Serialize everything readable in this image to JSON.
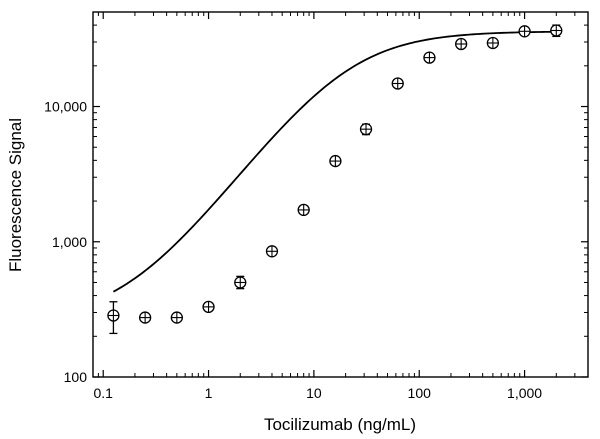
{
  "chart_data": {
    "type": "scatter",
    "title": "",
    "xlabel": "Tocilizumab (ng/mL)",
    "ylabel": "Fluorescence Signal",
    "x_scale": "log",
    "y_scale": "log",
    "xlim": [
      0.08,
      4000
    ],
    "ylim": [
      100,
      50000
    ],
    "grid": false,
    "x_ticks": [
      {
        "value": 0.1,
        "label": "0.1"
      },
      {
        "value": 1,
        "label": "1"
      },
      {
        "value": 10,
        "label": "10"
      },
      {
        "value": 100,
        "label": "100"
      },
      {
        "value": 1000,
        "label": "1,000"
      }
    ],
    "y_ticks": [
      {
        "value": 100,
        "label": "100"
      },
      {
        "value": 1000,
        "label": "1,000"
      },
      {
        "value": 10000,
        "label": "10,000"
      }
    ],
    "series": [
      {
        "type": "scatter",
        "marker": "open-circle",
        "points": [
          {
            "x": 0.125,
            "y": 285,
            "err_lo": 210,
            "err_hi": 360
          },
          {
            "x": 0.25,
            "y": 275,
            "err_lo": 262,
            "err_hi": 288
          },
          {
            "x": 0.5,
            "y": 275,
            "err_lo": 262,
            "err_hi": 288
          },
          {
            "x": 1,
            "y": 330,
            "err_lo": 315,
            "err_hi": 345
          },
          {
            "x": 2,
            "y": 500,
            "err_lo": 450,
            "err_hi": 555
          },
          {
            "x": 4,
            "y": 850,
            "err_lo": 820,
            "err_hi": 880
          },
          {
            "x": 8,
            "y": 1720,
            "err_lo": 1640,
            "err_hi": 1800
          },
          {
            "x": 16,
            "y": 3950,
            "err_lo": 3750,
            "err_hi": 4150
          },
          {
            "x": 31.25,
            "y": 6800,
            "err_lo": 6200,
            "err_hi": 7400
          },
          {
            "x": 62.5,
            "y": 14800,
            "err_lo": 14000,
            "err_hi": 15600
          },
          {
            "x": 125,
            "y": 23000,
            "err_lo": 22000,
            "err_hi": 24000
          },
          {
            "x": 250,
            "y": 29000,
            "err_lo": 27500,
            "err_hi": 30500
          },
          {
            "x": 500,
            "y": 29500,
            "err_lo": 28000,
            "err_hi": 31000
          },
          {
            "x": 1000,
            "y": 36000,
            "err_lo": 34000,
            "err_hi": 38000
          },
          {
            "x": 2000,
            "y": 36500,
            "err_lo": 33000,
            "err_hi": 40000
          }
        ]
      },
      {
        "type": "line",
        "model": "4PL fit",
        "params": {
          "bottom": 255,
          "top": 36000,
          "ec50": 20,
          "hill": 1.05
        },
        "x_range": [
          0.125,
          2000
        ]
      }
    ]
  }
}
